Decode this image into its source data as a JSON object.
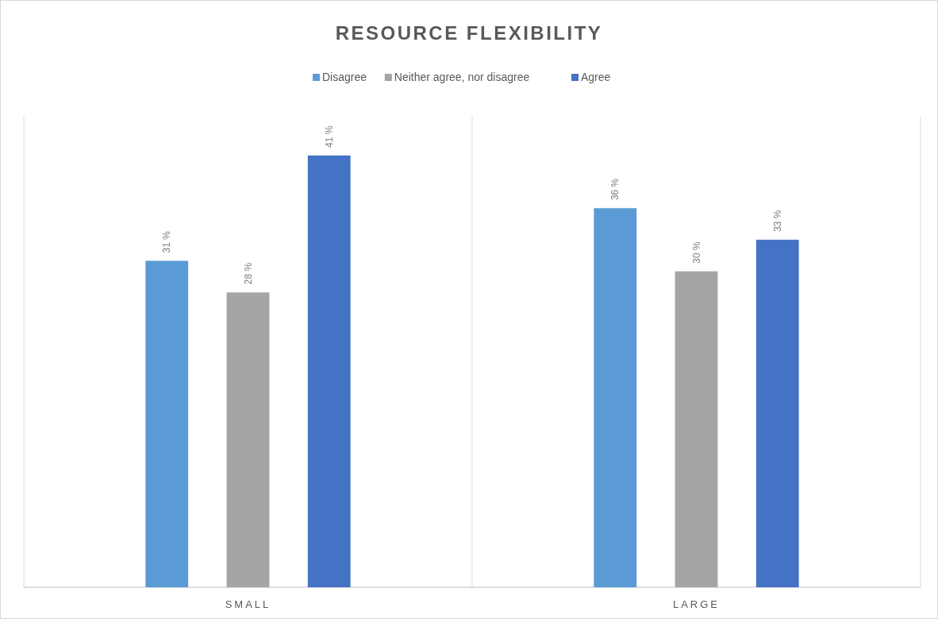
{
  "chart_data": {
    "type": "bar",
    "title": "RESOURCE FLEXIBILITY",
    "categories": [
      "SMALL",
      "LARGE"
    ],
    "series": [
      {
        "name": "Disagree",
        "color": "#5b9bd5",
        "values": [
          31,
          36
        ],
        "value_labels": [
          "31 %",
          "36 %"
        ]
      },
      {
        "name": "Neither agree, nor disagree",
        "color": "#a5a5a5",
        "values": [
          28,
          30
        ],
        "value_labels": [
          "28 %",
          "30 %"
        ]
      },
      {
        "name": "Agree",
        "color": "#4472c4",
        "values": [
          41,
          33
        ],
        "value_labels": [
          "41 %",
          "33 %"
        ]
      }
    ],
    "legend": "top"
  }
}
